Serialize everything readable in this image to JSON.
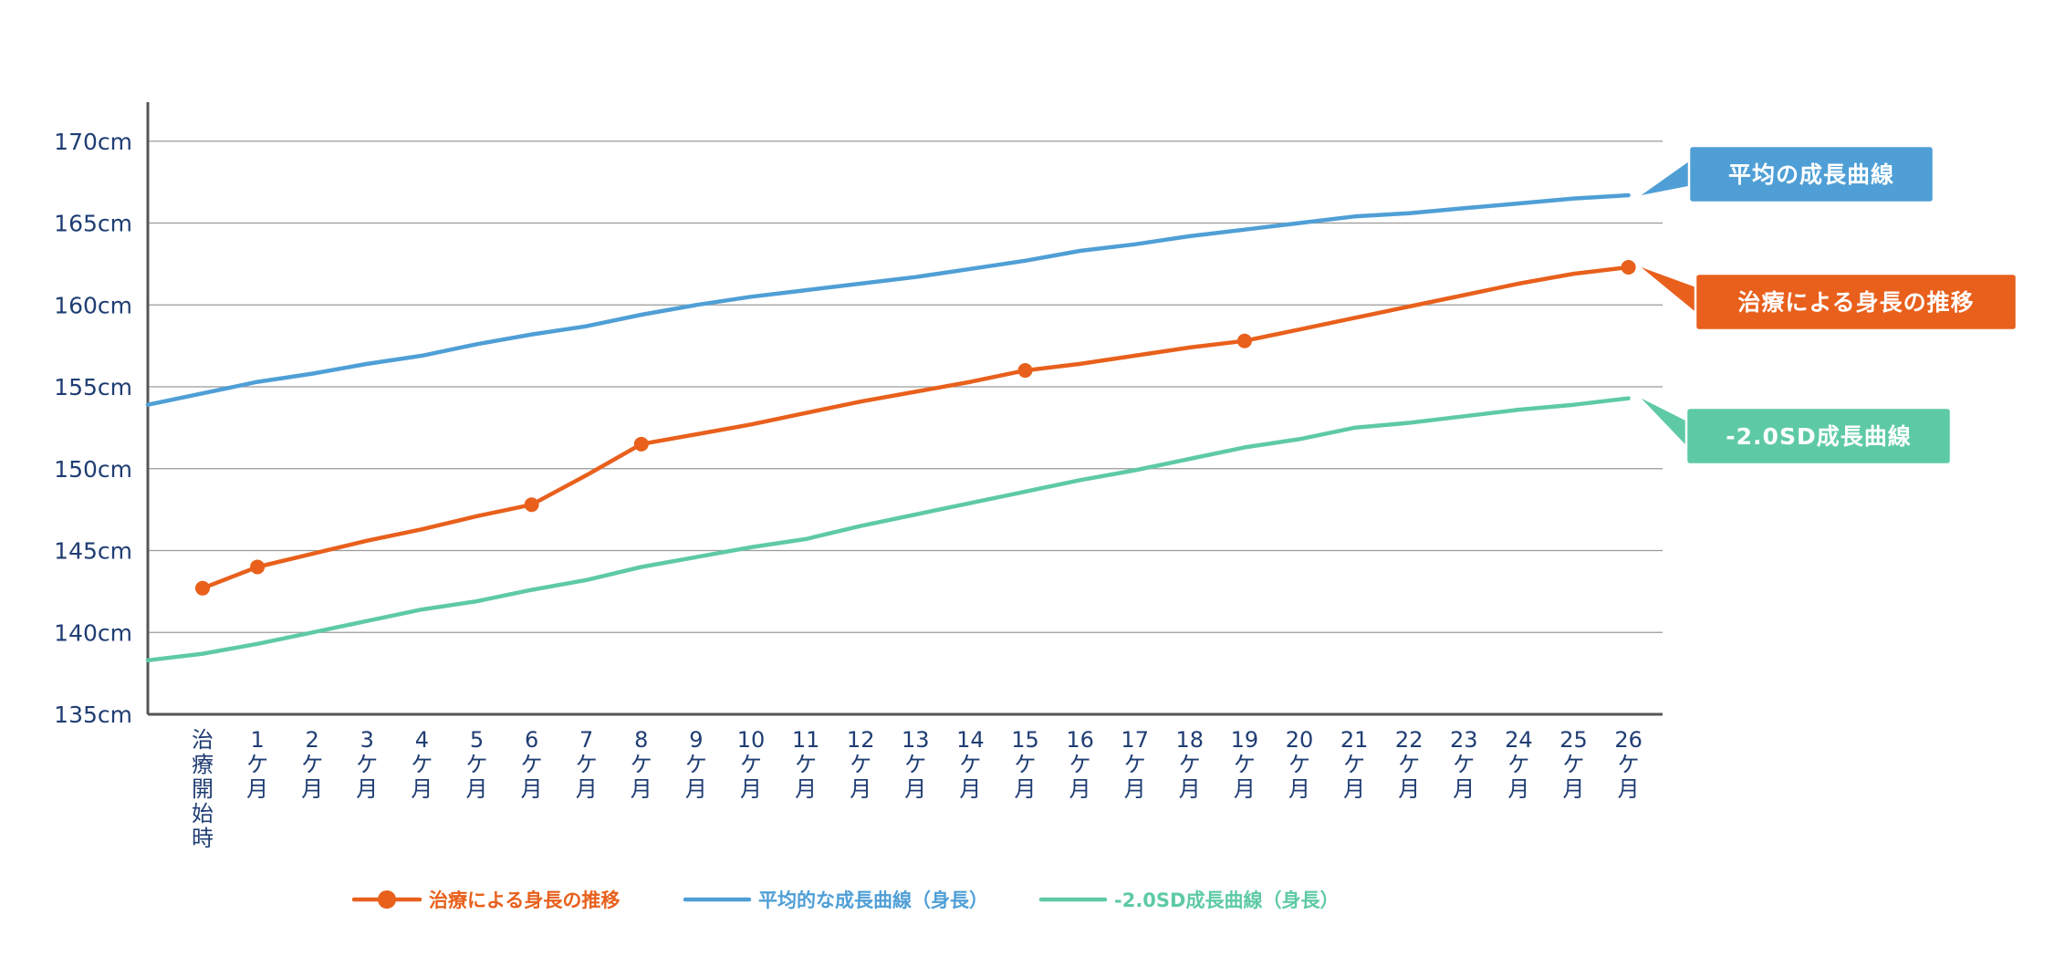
{
  "chart_data": {
    "type": "line",
    "title": "",
    "xlabel": "",
    "ylabel": "",
    "ylim": [
      135,
      172
    ],
    "y_ticks": [
      135,
      140,
      145,
      150,
      155,
      160,
      165,
      170
    ],
    "y_unit": "cm",
    "grid": true,
    "categories": [
      "治療開始時",
      "1ケ月",
      "2ケ月",
      "3ケ月",
      "4ケ月",
      "5ケ月",
      "6ケ月",
      "7ケ月",
      "8ケ月",
      "9ケ月",
      "10ケ月",
      "11ケ月",
      "12ケ月",
      "13ケ月",
      "14ケ月",
      "15ケ月",
      "16ケ月",
      "17ケ月",
      "18ケ月",
      "19ケ月",
      "20ケ月",
      "21ケ月",
      "22ケ月",
      "23ケ月",
      "24ケ月",
      "25ケ月",
      "26ケ月"
    ],
    "series": [
      {
        "name": "平均的な成長曲線（身長）",
        "color": "#4f9fd6",
        "marker": false,
        "extends_to_axis": true,
        "axis_start_value": 153.9,
        "values": [
          154.6,
          155.3,
          155.8,
          156.4,
          156.9,
          157.6,
          158.2,
          158.7,
          159.4,
          160.0,
          160.5,
          160.9,
          161.3,
          161.7,
          162.2,
          162.7,
          163.3,
          163.7,
          164.2,
          164.6,
          165.0,
          165.4,
          165.6,
          165.9,
          166.2,
          166.5,
          166.7
        ]
      },
      {
        "name": "治療による身長の推移",
        "color": "#e8601c",
        "marker": true,
        "extends_to_axis": false,
        "values": [
          142.7,
          144.0,
          144.8,
          145.6,
          146.3,
          147.1,
          147.8,
          149.6,
          151.5,
          152.1,
          152.7,
          153.4,
          154.1,
          154.7,
          155.3,
          156.0,
          156.4,
          156.9,
          157.4,
          157.8,
          158.5,
          159.2,
          159.9,
          160.6,
          161.3,
          161.9,
          162.3
        ],
        "marker_indices": [
          0,
          1,
          6,
          8,
          15,
          19,
          26
        ]
      },
      {
        "name": "-2.0SD成長曲線（身長）",
        "color": "#5ecaa5",
        "marker": false,
        "extends_to_axis": true,
        "axis_start_value": 138.3,
        "values": [
          138.7,
          139.3,
          140.0,
          140.7,
          141.4,
          141.9,
          142.6,
          143.2,
          144.0,
          144.6,
          145.2,
          145.7,
          146.5,
          147.2,
          147.9,
          148.6,
          149.3,
          149.9,
          150.6,
          151.3,
          151.8,
          152.5,
          152.8,
          153.2,
          153.6,
          153.9,
          154.3
        ]
      }
    ],
    "callouts": [
      {
        "label": "平均の成長曲線",
        "series_index": 0,
        "color": "#4f9fd6"
      },
      {
        "label": "治療による身長の推移",
        "series_index": 1,
        "color": "#e8601c"
      },
      {
        "label": "-2.0SD成長曲線",
        "series_index": 2,
        "color": "#5ecaa5"
      }
    ],
    "legend": {
      "placement": "bottom",
      "items": [
        {
          "label": "治療による身長の推移",
          "color": "#e8601c",
          "marker": true
        },
        {
          "label": "平均的な成長曲線（身長）",
          "color": "#4f9fd6",
          "marker": false
        },
        {
          "label": "-2.0SD成長曲線（身長）",
          "color": "#5ecaa5",
          "marker": false
        }
      ]
    },
    "axis_color": "#555555",
    "grid_color": "#9a9a9a",
    "tick_label_color": "#1f3d73"
  }
}
